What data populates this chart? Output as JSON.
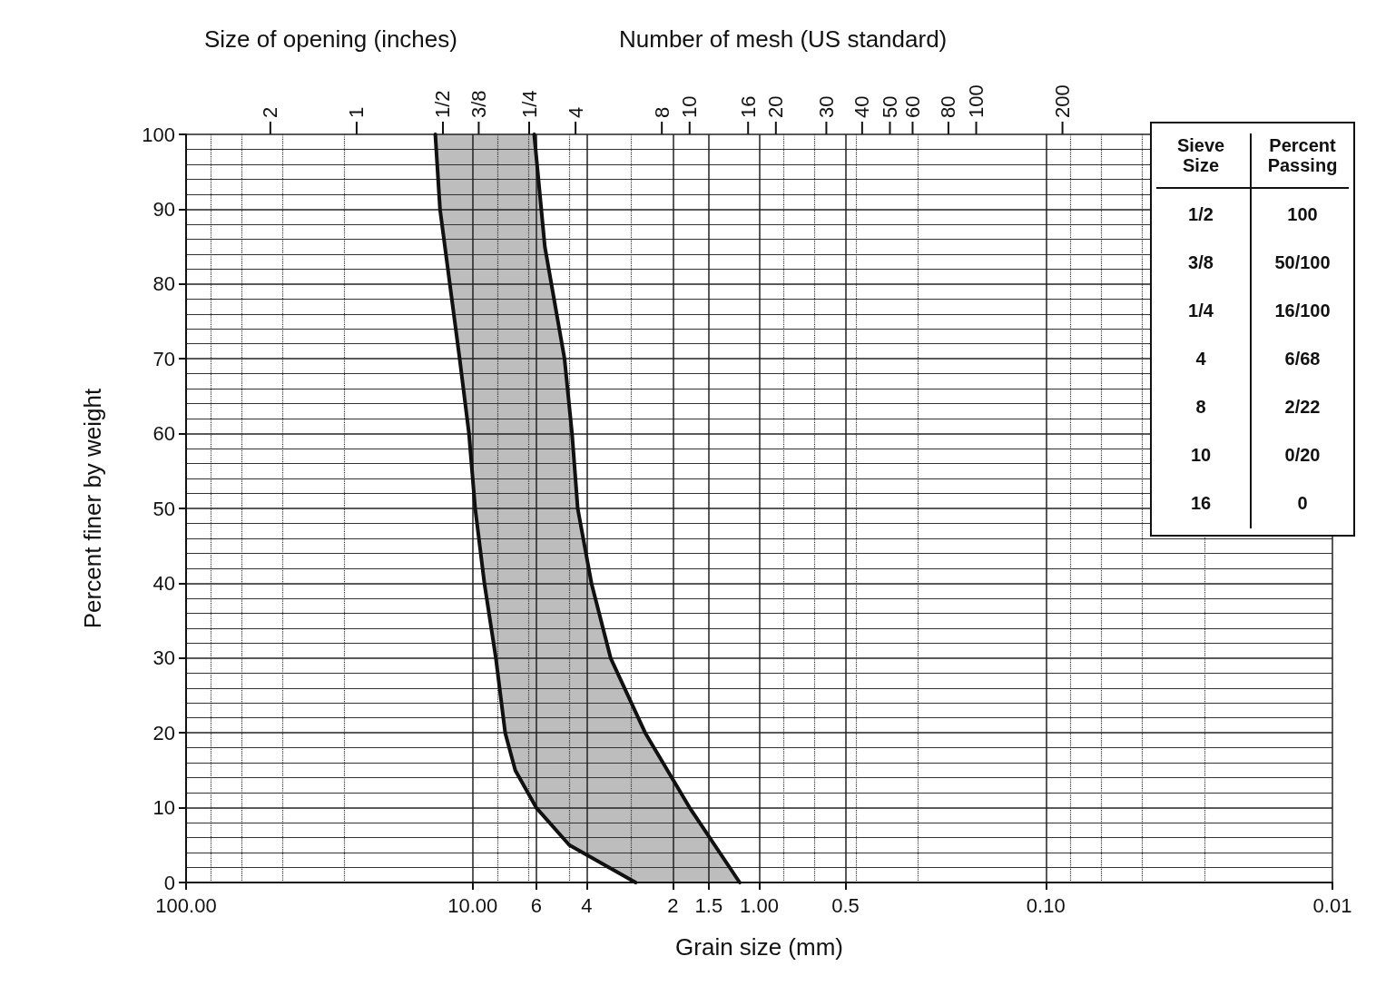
{
  "chart_data": {
    "type": "line",
    "xlabel": "Grain size (mm)",
    "ylabel": "Percent finer by weight",
    "annotations": [
      "Size of opening (inches)",
      "2",
      "1",
      "1/2",
      "3/8",
      "1/4",
      "Number of mesh (US standard)",
      "4",
      "8",
      "10",
      "16",
      "20",
      "30",
      "40",
      "50",
      "60",
      "80",
      "100",
      "200",
      "Sieve Size",
      "Percent Passing",
      "1/2",
      "100",
      "3/8",
      "50/100",
      "1/4",
      "16/100",
      "4",
      "6/68",
      "8",
      "2/22",
      "10",
      "0/20",
      "16",
      "0"
    ],
    "series": [
      {
        "color": "#111111",
        "x": [
          13.5,
          13,
          11.1,
          10.3,
          9.8,
          9.1,
          8.3,
          7.7,
          7.1,
          6.0,
          4.6,
          2.7
        ],
        "values": [
          100,
          90,
          70,
          60,
          50,
          40,
          30,
          20,
          15,
          10,
          5,
          0
        ]
      },
      {
        "color": "#111111",
        "x": [
          6.1,
          5.6,
          4.78,
          4.5,
          4.3,
          3.85,
          3.3,
          2.5,
          1.75,
          1.17
        ],
        "values": [
          100,
          85,
          70,
          60,
          50,
          40,
          30,
          20,
          10,
          0
        ]
      }
    ],
    "log": "x",
    "xlim": [
      100,
      0.01
    ],
    "xticks": [
      {
        "value": 100,
        "label": "100.00"
      },
      {
        "value": 10,
        "label": "10.00"
      },
      6,
      4,
      2,
      1.5,
      {
        "value": 1,
        "label": "1.00"
      },
      0.5,
      {
        "value": 0.1,
        "label": "0.10"
      },
      0.01
    ],
    "ylim": [
      0,
      100
    ],
    "yticks": [
      0,
      10,
      20,
      30,
      40,
      50,
      60,
      70,
      80,
      90,
      100
    ],
    "grid": true,
    "marker": "none",
    "line_style": "solid"
  }
}
